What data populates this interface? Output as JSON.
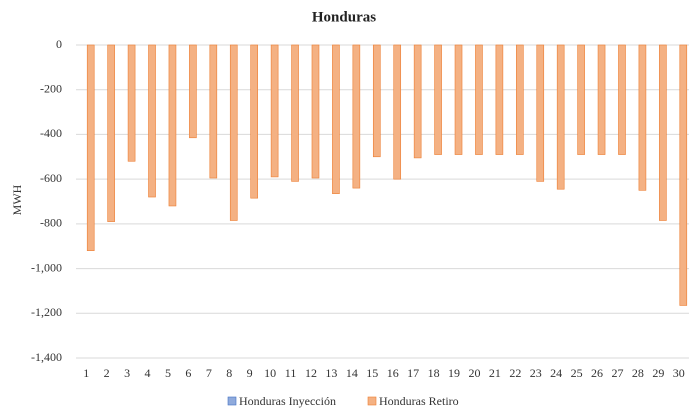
{
  "chart_data": {
    "type": "bar",
    "title": "Honduras",
    "y_label": "MWH",
    "categories": [
      "1",
      "2",
      "3",
      "4",
      "5",
      "6",
      "7",
      "8",
      "9",
      "10",
      "11",
      "12",
      "13",
      "14",
      "15",
      "16",
      "17",
      "18",
      "19",
      "20",
      "21",
      "22",
      "23",
      "24",
      "25",
      "26",
      "27",
      "28",
      "29",
      "30"
    ],
    "series": [
      {
        "name": "Honduras Inyección",
        "color": "#8faadc",
        "values": [
          0,
          0,
          0,
          0,
          0,
          0,
          0,
          0,
          0,
          0,
          0,
          0,
          0,
          0,
          0,
          0,
          0,
          0,
          0,
          0,
          0,
          0,
          0,
          0,
          0,
          0,
          0,
          0,
          0,
          0
        ]
      },
      {
        "name": "Honduras Retiro",
        "color": "#f4b183",
        "values": [
          -920,
          -790,
          -520,
          -680,
          -720,
          -415,
          -595,
          -785,
          -685,
          -590,
          -610,
          -595,
          -665,
          -640,
          -500,
          -600,
          -505,
          -490,
          -490,
          -490,
          -490,
          -490,
          -610,
          -645,
          -490,
          -490,
          -490,
          -650,
          -785,
          -1165
        ]
      }
    ],
    "ylim": [
      -1400,
      0
    ],
    "yticks": [
      0,
      -200,
      -400,
      -600,
      -800,
      {
        "value": -1000,
        "label": "-1,000"
      },
      {
        "value": -1200,
        "label": "-1,200"
      },
      {
        "value": -1400,
        "label": "-1,400"
      }
    ],
    "grid": true,
    "legend": "bottom"
  }
}
